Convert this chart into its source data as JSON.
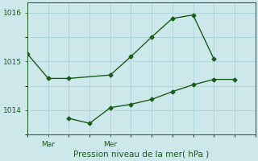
{
  "bg_color": "#cce8ea",
  "grid_color": "#add4d8",
  "line_color": "#1a5c1a",
  "xlabel": "Pression niveau de la mer( hPa )",
  "xlabel_color": "#1a5c1a",
  "yticks": [
    1014,
    1015,
    1016
  ],
  "xtick_labels": [
    "Mar",
    "Mer"
  ],
  "xtick_positions": [
    1,
    4
  ],
  "xlim": [
    0,
    11
  ],
  "ylim": [
    1013.5,
    1016.2
  ],
  "series1_x": [
    0,
    1,
    2,
    4,
    5,
    6,
    7,
    8,
    9
  ],
  "series1_y": [
    1015.15,
    1014.65,
    1014.65,
    1014.72,
    1015.1,
    1015.5,
    1015.88,
    1015.95,
    1015.05
  ],
  "series2_x": [
    2,
    3,
    4,
    5,
    6,
    7,
    8,
    9,
    10
  ],
  "series2_y": [
    1013.83,
    1013.73,
    1014.05,
    1014.12,
    1014.22,
    1014.38,
    1014.52,
    1014.63,
    1014.63
  ],
  "marker": "D",
  "markersize": 2.5,
  "linewidth": 1.0,
  "tick_labelsize": 6.5,
  "xlabel_fontsize": 7.5
}
